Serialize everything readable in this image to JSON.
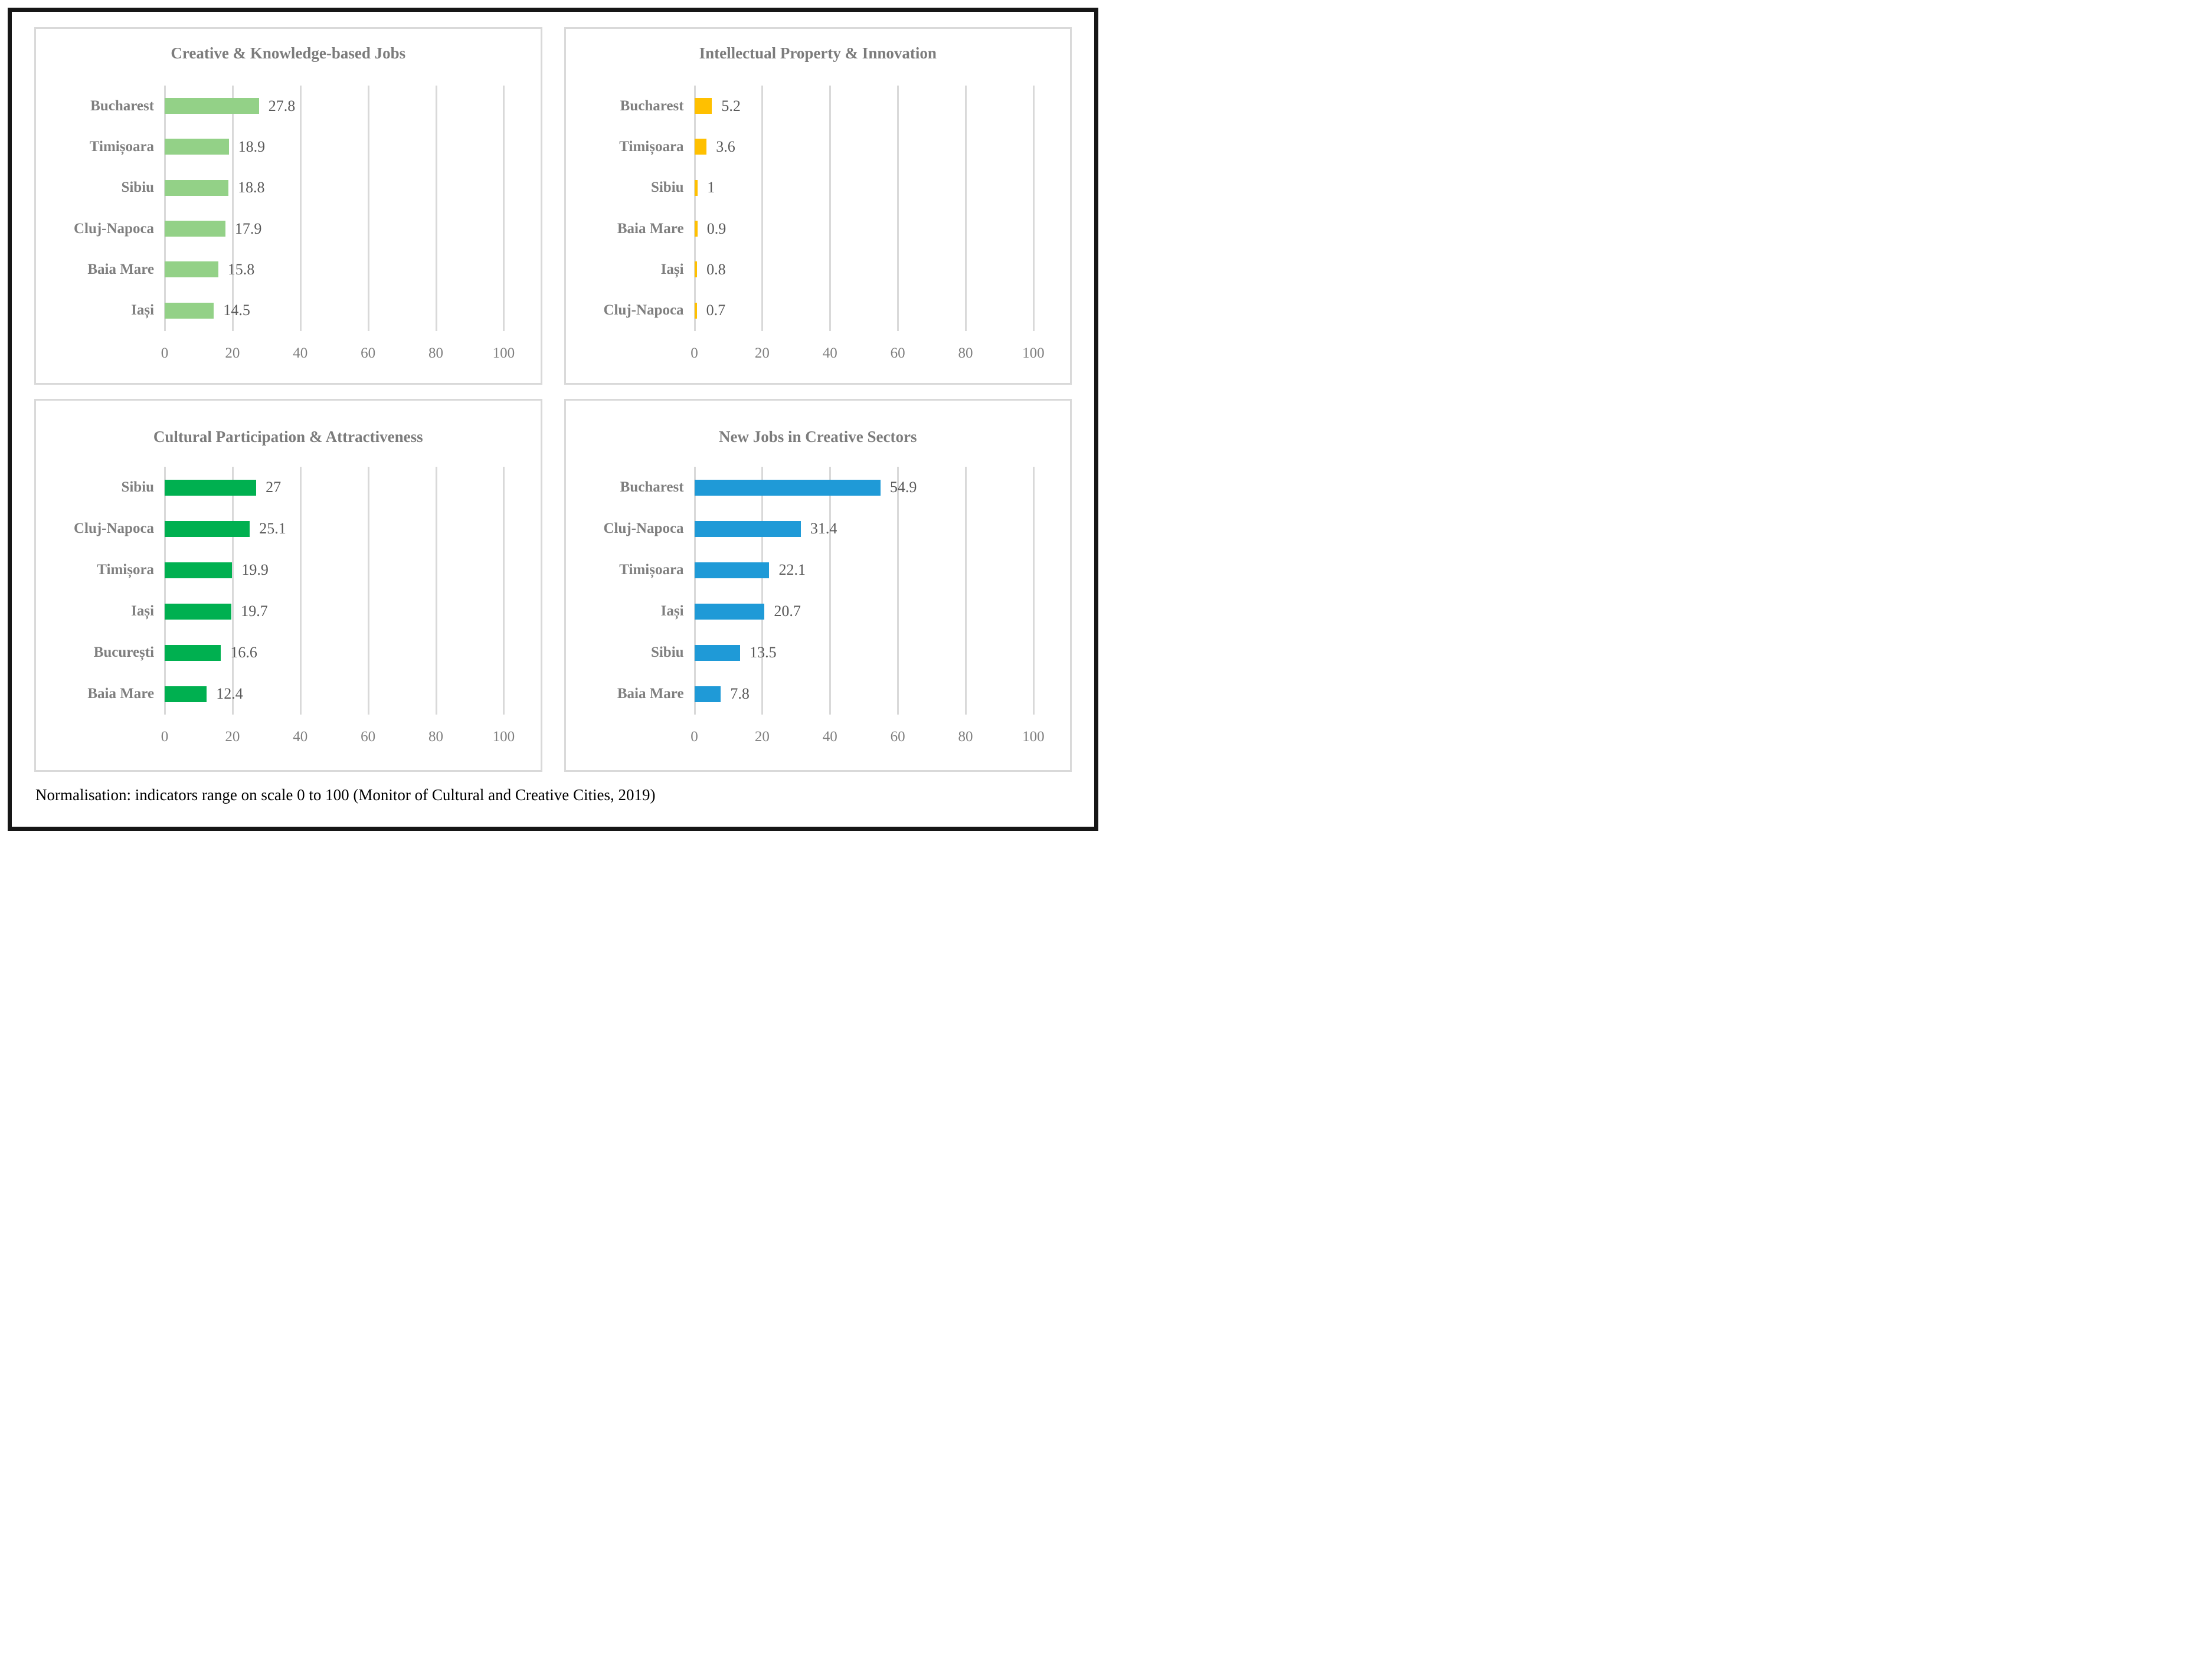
{
  "caption": "Normalisation: indicators range on scale 0 to 100 (Monitor of Cultural and Creative Cities, 2019)",
  "chart_data": [
    {
      "type": "bar",
      "orientation": "horizontal",
      "title": "Creative & Knowledge-based Jobs",
      "categories": [
        "Bucharest",
        "Timișoara",
        "Sibiu",
        "Cluj-Napoca",
        "Baia Mare",
        "Iași"
      ],
      "values": [
        27.8,
        18.9,
        18.8,
        17.9,
        15.8,
        14.5
      ],
      "bar_color": "#93d187",
      "xlim": [
        0,
        100
      ],
      "ticks": [
        0,
        20,
        40,
        60,
        80,
        100
      ],
      "grid": true,
      "legend": "none"
    },
    {
      "type": "bar",
      "orientation": "horizontal",
      "title": "Intellectual Property & Innovation",
      "categories": [
        "Bucharest",
        "Timișoara",
        "Sibiu",
        "Baia Mare",
        "Iași",
        "Cluj-Napoca"
      ],
      "values": [
        5.2,
        3.6,
        1,
        0.9,
        0.8,
        0.7
      ],
      "bar_color": "#ffc000",
      "xlim": [
        0,
        100
      ],
      "ticks": [
        0,
        20,
        40,
        60,
        80,
        100
      ],
      "grid": true,
      "legend": "none"
    },
    {
      "type": "bar",
      "orientation": "horizontal",
      "title": "Cultural Participation & Attractiveness",
      "categories": [
        "Sibiu",
        "Cluj-Napoca",
        "Timișora",
        "Iași",
        "București",
        "Baia Mare"
      ],
      "values": [
        27,
        25.1,
        19.9,
        19.7,
        16.6,
        12.4
      ],
      "bar_color": "#00b050",
      "xlim": [
        0,
        100
      ],
      "ticks": [
        0,
        20,
        40,
        60,
        80,
        100
      ],
      "grid": true,
      "legend": "none"
    },
    {
      "type": "bar",
      "orientation": "horizontal",
      "title": "New Jobs in Creative Sectors",
      "categories": [
        "Bucharest",
        "Cluj-Napoca",
        "Timișoara",
        "Iași",
        "Sibiu",
        "Baia Mare"
      ],
      "values": [
        54.9,
        31.4,
        22.1,
        20.7,
        13.5,
        7.8
      ],
      "bar_color": "#1f9ad7",
      "xlim": [
        0,
        100
      ],
      "ticks": [
        0,
        20,
        40,
        60,
        80,
        100
      ],
      "grid": true,
      "legend": "none"
    }
  ],
  "style": {
    "gridline_color": "#d9d9d9",
    "panel_border_color": "#d9d9d9",
    "title_color": "#7c7c7c",
    "category_label_color": "#7f7f7f",
    "value_label_color": "#595959",
    "tick_label_color": "#7f7f7f",
    "frame_color": "#161616"
  }
}
